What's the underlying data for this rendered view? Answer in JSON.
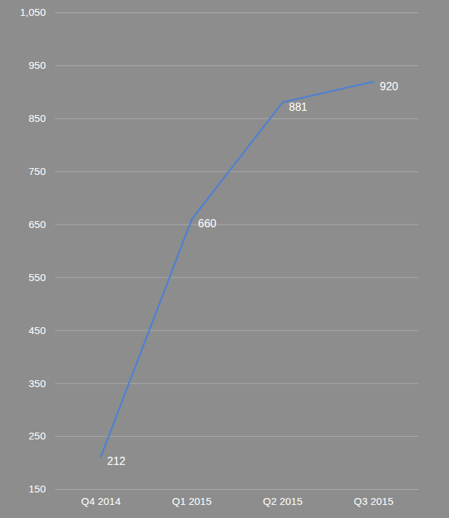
{
  "chart_data": {
    "type": "line",
    "categories": [
      "Q4 2014",
      "Q1 2015",
      "Q2 2015",
      "Q3 2015"
    ],
    "values": [
      212,
      660,
      881,
      920
    ],
    "color": "#4f81d0",
    "ylim": [
      150,
      1050
    ],
    "yticks": [
      150,
      250,
      350,
      450,
      550,
      650,
      750,
      850,
      950,
      {
        "value": 1050,
        "label": "1,050"
      }
    ],
    "grid": true,
    "data_labels": true
  }
}
